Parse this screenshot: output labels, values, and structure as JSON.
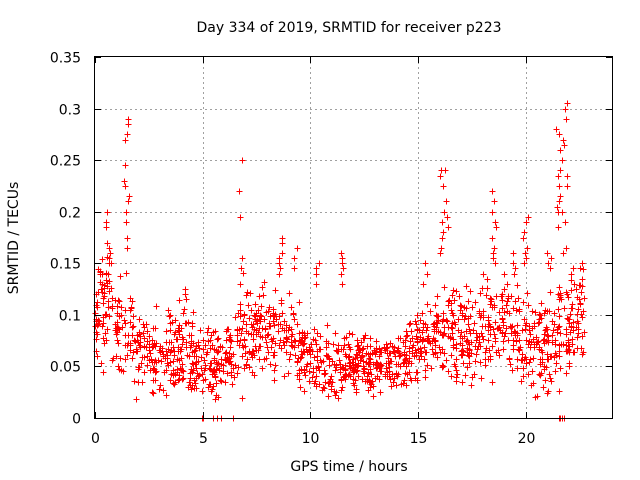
{
  "chart_data": {
    "type": "scatter",
    "title": "Day 334 of 2019, SRMTID for receiver p223",
    "xlabel": "GPS time / hours",
    "ylabel": "SRMTID / TECUs",
    "xlim": [
      0,
      24
    ],
    "ylim": [
      0,
      0.35
    ],
    "xticks": [
      0,
      5,
      10,
      15,
      20
    ],
    "xtick_labels": [
      "0",
      "5",
      "10",
      "15",
      "20"
    ],
    "yticks": [
      0,
      0.05,
      0.1,
      0.15,
      0.2,
      0.25,
      0.3,
      0.35
    ],
    "ytick_labels": [
      "0",
      "0.05",
      "0.1",
      "0.15",
      "0.2",
      "0.25",
      "0.3",
      "0.35"
    ],
    "grid": true,
    "marker": "+",
    "color": "#ff0000",
    "profile": [
      {
        "x": 0.0,
        "center": 0.09,
        "spread": 0.04
      },
      {
        "x": 0.5,
        "center": 0.11,
        "spread": 0.05
      },
      {
        "x": 1.0,
        "center": 0.08,
        "spread": 0.035
      },
      {
        "x": 1.5,
        "center": 0.09,
        "spread": 0.045
      },
      {
        "x": 2.0,
        "center": 0.07,
        "spread": 0.035
      },
      {
        "x": 3.0,
        "center": 0.055,
        "spread": 0.03
      },
      {
        "x": 4.0,
        "center": 0.07,
        "spread": 0.04
      },
      {
        "x": 5.0,
        "center": 0.05,
        "spread": 0.03
      },
      {
        "x": 6.0,
        "center": 0.06,
        "spread": 0.03
      },
      {
        "x": 7.0,
        "center": 0.08,
        "spread": 0.045
      },
      {
        "x": 8.0,
        "center": 0.08,
        "spread": 0.04
      },
      {
        "x": 9.0,
        "center": 0.075,
        "spread": 0.035
      },
      {
        "x": 10.0,
        "center": 0.055,
        "spread": 0.025
      },
      {
        "x": 11.0,
        "center": 0.05,
        "spread": 0.03
      },
      {
        "x": 12.0,
        "center": 0.055,
        "spread": 0.03
      },
      {
        "x": 13.0,
        "center": 0.05,
        "spread": 0.025
      },
      {
        "x": 14.0,
        "center": 0.055,
        "spread": 0.025
      },
      {
        "x": 15.0,
        "center": 0.07,
        "spread": 0.03
      },
      {
        "x": 16.0,
        "center": 0.09,
        "spread": 0.04
      },
      {
        "x": 17.0,
        "center": 0.075,
        "spread": 0.04
      },
      {
        "x": 18.0,
        "center": 0.085,
        "spread": 0.045
      },
      {
        "x": 19.0,
        "center": 0.09,
        "spread": 0.045
      },
      {
        "x": 20.0,
        "center": 0.08,
        "spread": 0.045
      },
      {
        "x": 21.0,
        "center": 0.07,
        "spread": 0.04
      },
      {
        "x": 22.0,
        "center": 0.09,
        "spread": 0.045
      },
      {
        "x": 22.7,
        "center": 0.09,
        "spread": 0.04
      }
    ],
    "background_points": 1500,
    "x_range_data": [
      0,
      22.7
    ],
    "peaks": [
      {
        "x": 0.2,
        "values": [
          0.14,
          0.13,
          0.125
        ]
      },
      {
        "x": 0.6,
        "values": [
          0.2,
          0.19,
          0.185,
          0.17,
          0.165,
          0.16,
          0.155,
          0.15
        ]
      },
      {
        "x": 1.45,
        "values": [
          0.29,
          0.285,
          0.275,
          0.27,
          0.245,
          0.23,
          0.225,
          0.215,
          0.21,
          0.2,
          0.19,
          0.175,
          0.165
        ]
      },
      {
        "x": 4.15,
        "values": [
          0.125,
          0.12,
          0.115
        ]
      },
      {
        "x": 6.7,
        "values": [
          0.25,
          0.22,
          0.195,
          0.155,
          0.145,
          0.13
        ]
      },
      {
        "x": 8.6,
        "values": [
          0.175,
          0.17,
          0.16,
          0.155,
          0.15,
          0.145,
          0.14
        ]
      },
      {
        "x": 9.3,
        "values": [
          0.165,
          0.155,
          0.145
        ]
      },
      {
        "x": 10.3,
        "values": [
          0.15,
          0.145,
          0.14,
          0.13
        ]
      },
      {
        "x": 11.5,
        "values": [
          0.16,
          0.155,
          0.15,
          0.145,
          0.14,
          0.13
        ]
      },
      {
        "x": 15.3,
        "values": [
          0.15,
          0.14,
          0.13
        ]
      },
      {
        "x": 16.1,
        "values": [
          0.24,
          0.235,
          0.225,
          0.2,
          0.19,
          0.18,
          0.175,
          0.165,
          0.16
        ]
      },
      {
        "x": 16.3,
        "values": [
          0.24,
          0.21,
          0.195,
          0.185
        ]
      },
      {
        "x": 18.5,
        "values": [
          0.22,
          0.21,
          0.2,
          0.19,
          0.185,
          0.175,
          0.165,
          0.16,
          0.155,
          0.15
        ]
      },
      {
        "x": 19.5,
        "values": [
          0.16,
          0.15,
          0.145,
          0.14
        ]
      },
      {
        "x": 20.0,
        "values": [
          0.195,
          0.19,
          0.18,
          0.175,
          0.165,
          0.16,
          0.155,
          0.15
        ]
      },
      {
        "x": 21.1,
        "values": [
          0.16,
          0.155,
          0.15,
          0.145
        ]
      },
      {
        "x": 21.5,
        "values": [
          0.28,
          0.275,
          0.26,
          0.24,
          0.235,
          0.225,
          0.215,
          0.21,
          0.205,
          0.2,
          0.185
        ]
      },
      {
        "x": 21.8,
        "values": [
          0.305,
          0.3,
          0.29,
          0.27,
          0.265,
          0.25,
          0.235,
          0.225,
          0.2,
          0.19,
          0.165,
          0.16
        ]
      },
      {
        "x": 22.2,
        "values": [
          0.145,
          0.14,
          0.13,
          0.125
        ]
      },
      {
        "x": 22.5,
        "values": [
          0.15,
          0.145,
          0.135
        ]
      }
    ],
    "zero_points": [
      4.95,
      5.0,
      5.5,
      5.65,
      5.85,
      6.4,
      21.55,
      21.6,
      21.7,
      21.75
    ]
  }
}
